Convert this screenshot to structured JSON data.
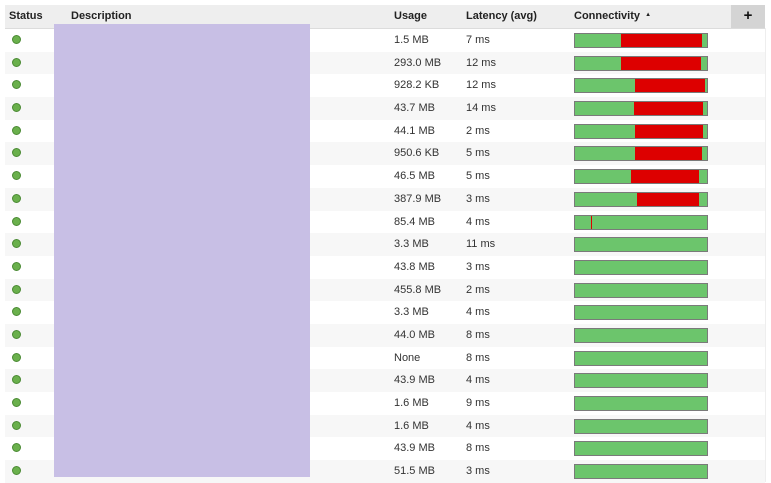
{
  "header": {
    "status": "Status",
    "description": "Description",
    "usage": "Usage",
    "latency": "Latency (avg)",
    "connectivity": "Connectivity",
    "sort_indicator": "▲",
    "add_button": "+"
  },
  "colors": {
    "status_ok": "#6ab04c",
    "bar_green": "#6cc56c",
    "bar_red": "#dd0000",
    "description_redaction": "#c8bfe5",
    "header_bg": "#eeeeee"
  },
  "rows": [
    {
      "status": "green-dot",
      "usage": "1.5 MB",
      "latency": "7 ms",
      "connectivity": [
        [
          "g",
          46
        ],
        [
          "r",
          81
        ],
        [
          "g",
          5
        ]
      ]
    },
    {
      "status": "green-dot",
      "usage": "293.0 MB",
      "latency": "12 ms",
      "connectivity": [
        [
          "g",
          46
        ],
        [
          "r",
          80
        ],
        [
          "g",
          6
        ]
      ]
    },
    {
      "status": "green-dot",
      "usage": "928.2 KB",
      "latency": "12 ms",
      "connectivity": [
        [
          "g",
          60
        ],
        [
          "r",
          70
        ],
        [
          "g",
          2
        ]
      ]
    },
    {
      "status": "green-dot",
      "usage": "43.7 MB",
      "latency": "14 ms",
      "connectivity": [
        [
          "g",
          59
        ],
        [
          "r",
          69
        ],
        [
          "g",
          4
        ]
      ]
    },
    {
      "status": "green-dot",
      "usage": "44.1 MB",
      "latency": "2 ms",
      "connectivity": [
        [
          "g",
          60
        ],
        [
          "r",
          68
        ],
        [
          "g",
          4
        ]
      ]
    },
    {
      "status": "green-dot",
      "usage": "950.6 KB",
      "latency": "5 ms",
      "connectivity": [
        [
          "g",
          60
        ],
        [
          "r",
          67
        ],
        [
          "g",
          5
        ]
      ]
    },
    {
      "status": "green-dot",
      "usage": "46.5 MB",
      "latency": "5 ms",
      "connectivity": [
        [
          "g",
          56
        ],
        [
          "r",
          68
        ],
        [
          "g",
          8
        ]
      ]
    },
    {
      "status": "green-dot",
      "usage": "387.9 MB",
      "latency": "3 ms",
      "connectivity": [
        [
          "g",
          62
        ],
        [
          "r",
          62
        ],
        [
          "g",
          8
        ]
      ]
    },
    {
      "status": "green-dot",
      "usage": "85.4 MB",
      "latency": "4 ms",
      "connectivity": [
        [
          "g",
          16
        ],
        [
          "r",
          1
        ],
        [
          "g",
          115
        ]
      ]
    },
    {
      "status": "green-dot",
      "usage": "3.3 MB",
      "latency": "11 ms",
      "connectivity": [
        [
          "g",
          132
        ]
      ]
    },
    {
      "status": "green-dot",
      "usage": "43.8 MB",
      "latency": "3 ms",
      "connectivity": [
        [
          "g",
          132
        ]
      ]
    },
    {
      "status": "green-dot",
      "usage": "455.8 MB",
      "latency": "2 ms",
      "connectivity": [
        [
          "g",
          132
        ]
      ]
    },
    {
      "status": "green-dot",
      "usage": "3.3 MB",
      "latency": "4 ms",
      "connectivity": [
        [
          "g",
          132
        ]
      ]
    },
    {
      "status": "green-dot",
      "usage": "44.0 MB",
      "latency": "8 ms",
      "connectivity": [
        [
          "g",
          132
        ]
      ]
    },
    {
      "status": "green-dot",
      "usage": "None",
      "latency": "8 ms",
      "connectivity": [
        [
          "g",
          132
        ]
      ]
    },
    {
      "status": "green-dot",
      "usage": "43.9 MB",
      "latency": "4 ms",
      "connectivity": [
        [
          "g",
          132
        ]
      ]
    },
    {
      "status": "green-dot",
      "usage": "1.6 MB",
      "latency": "9 ms",
      "connectivity": [
        [
          "g",
          132
        ]
      ]
    },
    {
      "status": "green-dot",
      "usage": "1.6 MB",
      "latency": "4 ms",
      "connectivity": [
        [
          "g",
          132
        ]
      ]
    },
    {
      "status": "green-dot",
      "usage": "43.9 MB",
      "latency": "8 ms",
      "connectivity": [
        [
          "g",
          132
        ]
      ]
    },
    {
      "status": "green-dot",
      "usage": "51.5 MB",
      "latency": "3 ms",
      "connectivity": [
        [
          "g",
          132
        ]
      ]
    }
  ]
}
